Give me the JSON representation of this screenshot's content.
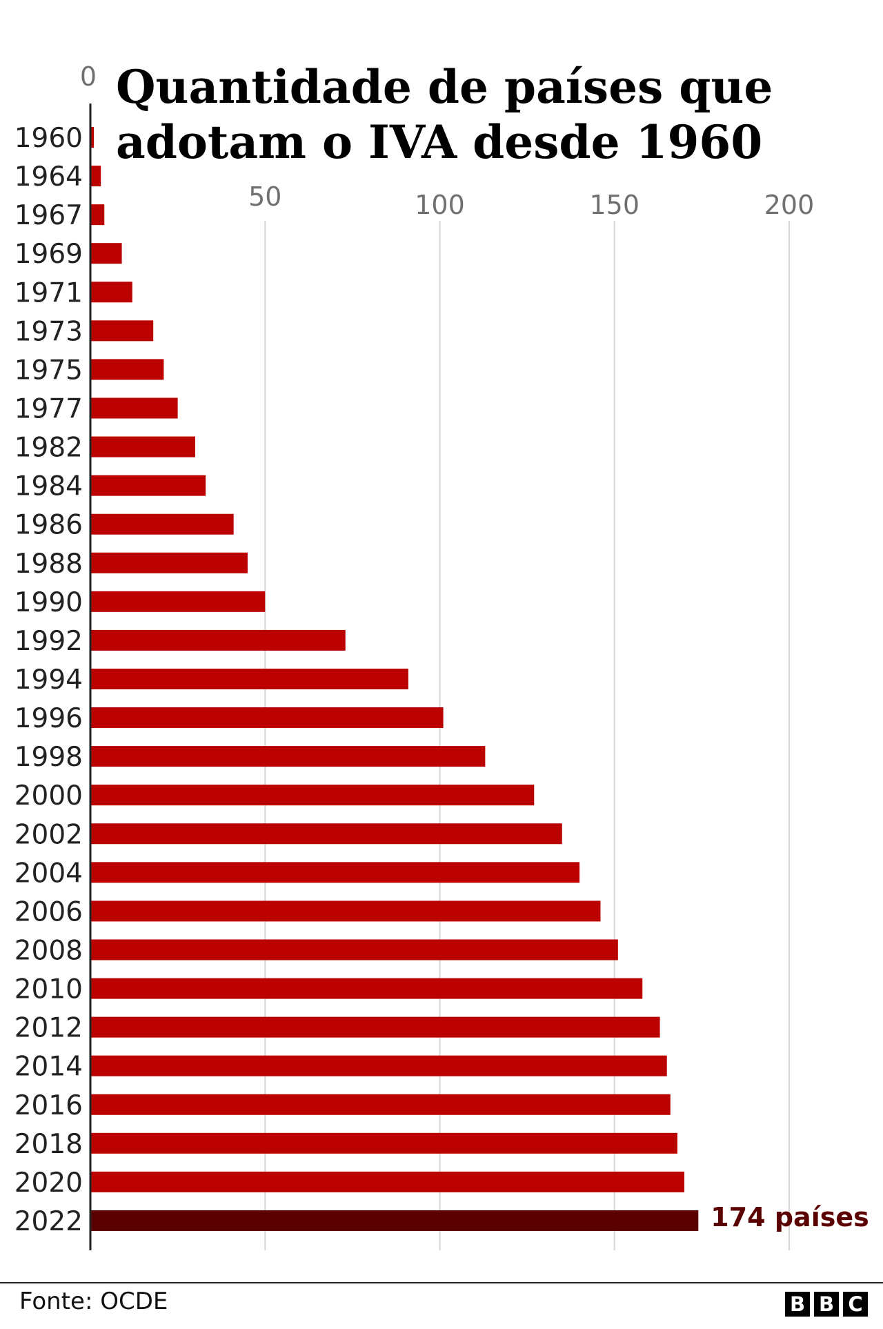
{
  "title": "Quantidade de países que adotam o IVA desde 1960",
  "source": "Fonte: OCDE",
  "logo": [
    "B",
    "B",
    "C"
  ],
  "colors": {
    "bar": "#bb0000",
    "highlight": "#5a0000",
    "grid": "#d5d5d5",
    "axis": "#222222"
  },
  "chart_data": {
    "type": "bar",
    "orientation": "horizontal",
    "title": "Quantidade de países que adotam o IVA desde 1960",
    "categories": [
      "1960",
      "1964",
      "1967",
      "1969",
      "1971",
      "1973",
      "1975",
      "1977",
      "1982",
      "1984",
      "1986",
      "1988",
      "1990",
      "1992",
      "1994",
      "1996",
      "1998",
      "2000",
      "2002",
      "2004",
      "2006",
      "2008",
      "2010",
      "2012",
      "2014",
      "2016",
      "2018",
      "2020",
      "2022"
    ],
    "values": [
      1,
      3,
      4,
      9,
      12,
      18,
      21,
      25,
      30,
      33,
      41,
      45,
      50,
      73,
      91,
      101,
      113,
      127,
      135,
      140,
      146,
      151,
      158,
      163,
      165,
      166,
      168,
      170,
      174
    ],
    "xlim": [
      0,
      200
    ],
    "xticks": [
      0,
      50,
      100,
      150,
      200
    ],
    "grid": true,
    "highlight": {
      "category": "2022",
      "label": "174 países"
    }
  }
}
